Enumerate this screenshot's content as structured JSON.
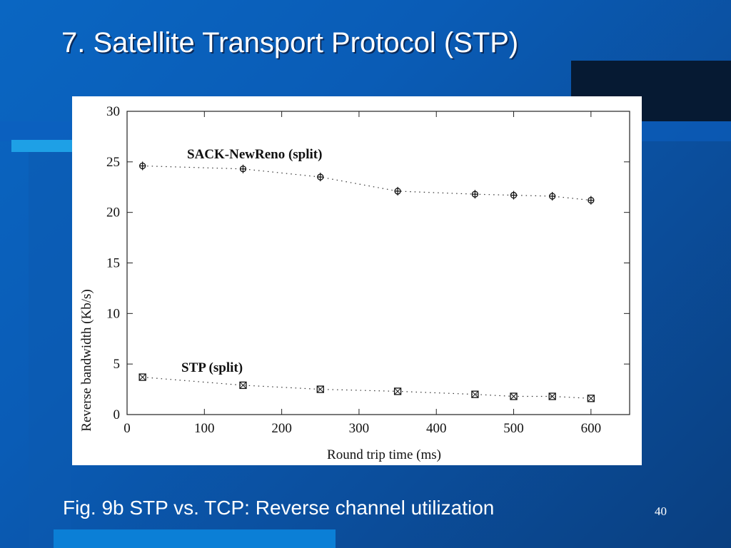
{
  "slide": {
    "title": "7. Satellite Transport Protocol (STP)",
    "caption": "Fig. 9b STP vs. TCP: Reverse channel utilization",
    "number": "40",
    "colors": {
      "background": "#0a5cb6",
      "accent_cyan": "#1ea0e6",
      "dark_block": "#061a33",
      "text": "#ffffff"
    }
  },
  "chart_data": {
    "type": "scatter",
    "xlabel": "Round trip time (ms)",
    "ylabel": "Reverse bandwidth (Kb/s)",
    "xlim": [
      0,
      650
    ],
    "ylim": [
      0,
      30
    ],
    "xticks": [
      0,
      100,
      200,
      300,
      400,
      500,
      600
    ],
    "yticks": [
      0,
      5,
      10,
      15,
      20,
      25,
      30
    ],
    "grid": false,
    "series": [
      {
        "name": "SACK-NewReno (split)",
        "marker": "circle-plus",
        "line": "dotted",
        "x": [
          20,
          150,
          250,
          350,
          450,
          500,
          550,
          600
        ],
        "y": [
          24.6,
          24.3,
          23.5,
          22.1,
          21.8,
          21.7,
          21.6,
          21.2
        ]
      },
      {
        "name": "STP (split)",
        "marker": "square-x",
        "line": "dotted",
        "x": [
          20,
          150,
          250,
          350,
          450,
          500,
          550,
          600
        ],
        "y": [
          3.7,
          2.9,
          2.5,
          2.3,
          2.0,
          1.8,
          1.8,
          1.6
        ]
      }
    ]
  }
}
